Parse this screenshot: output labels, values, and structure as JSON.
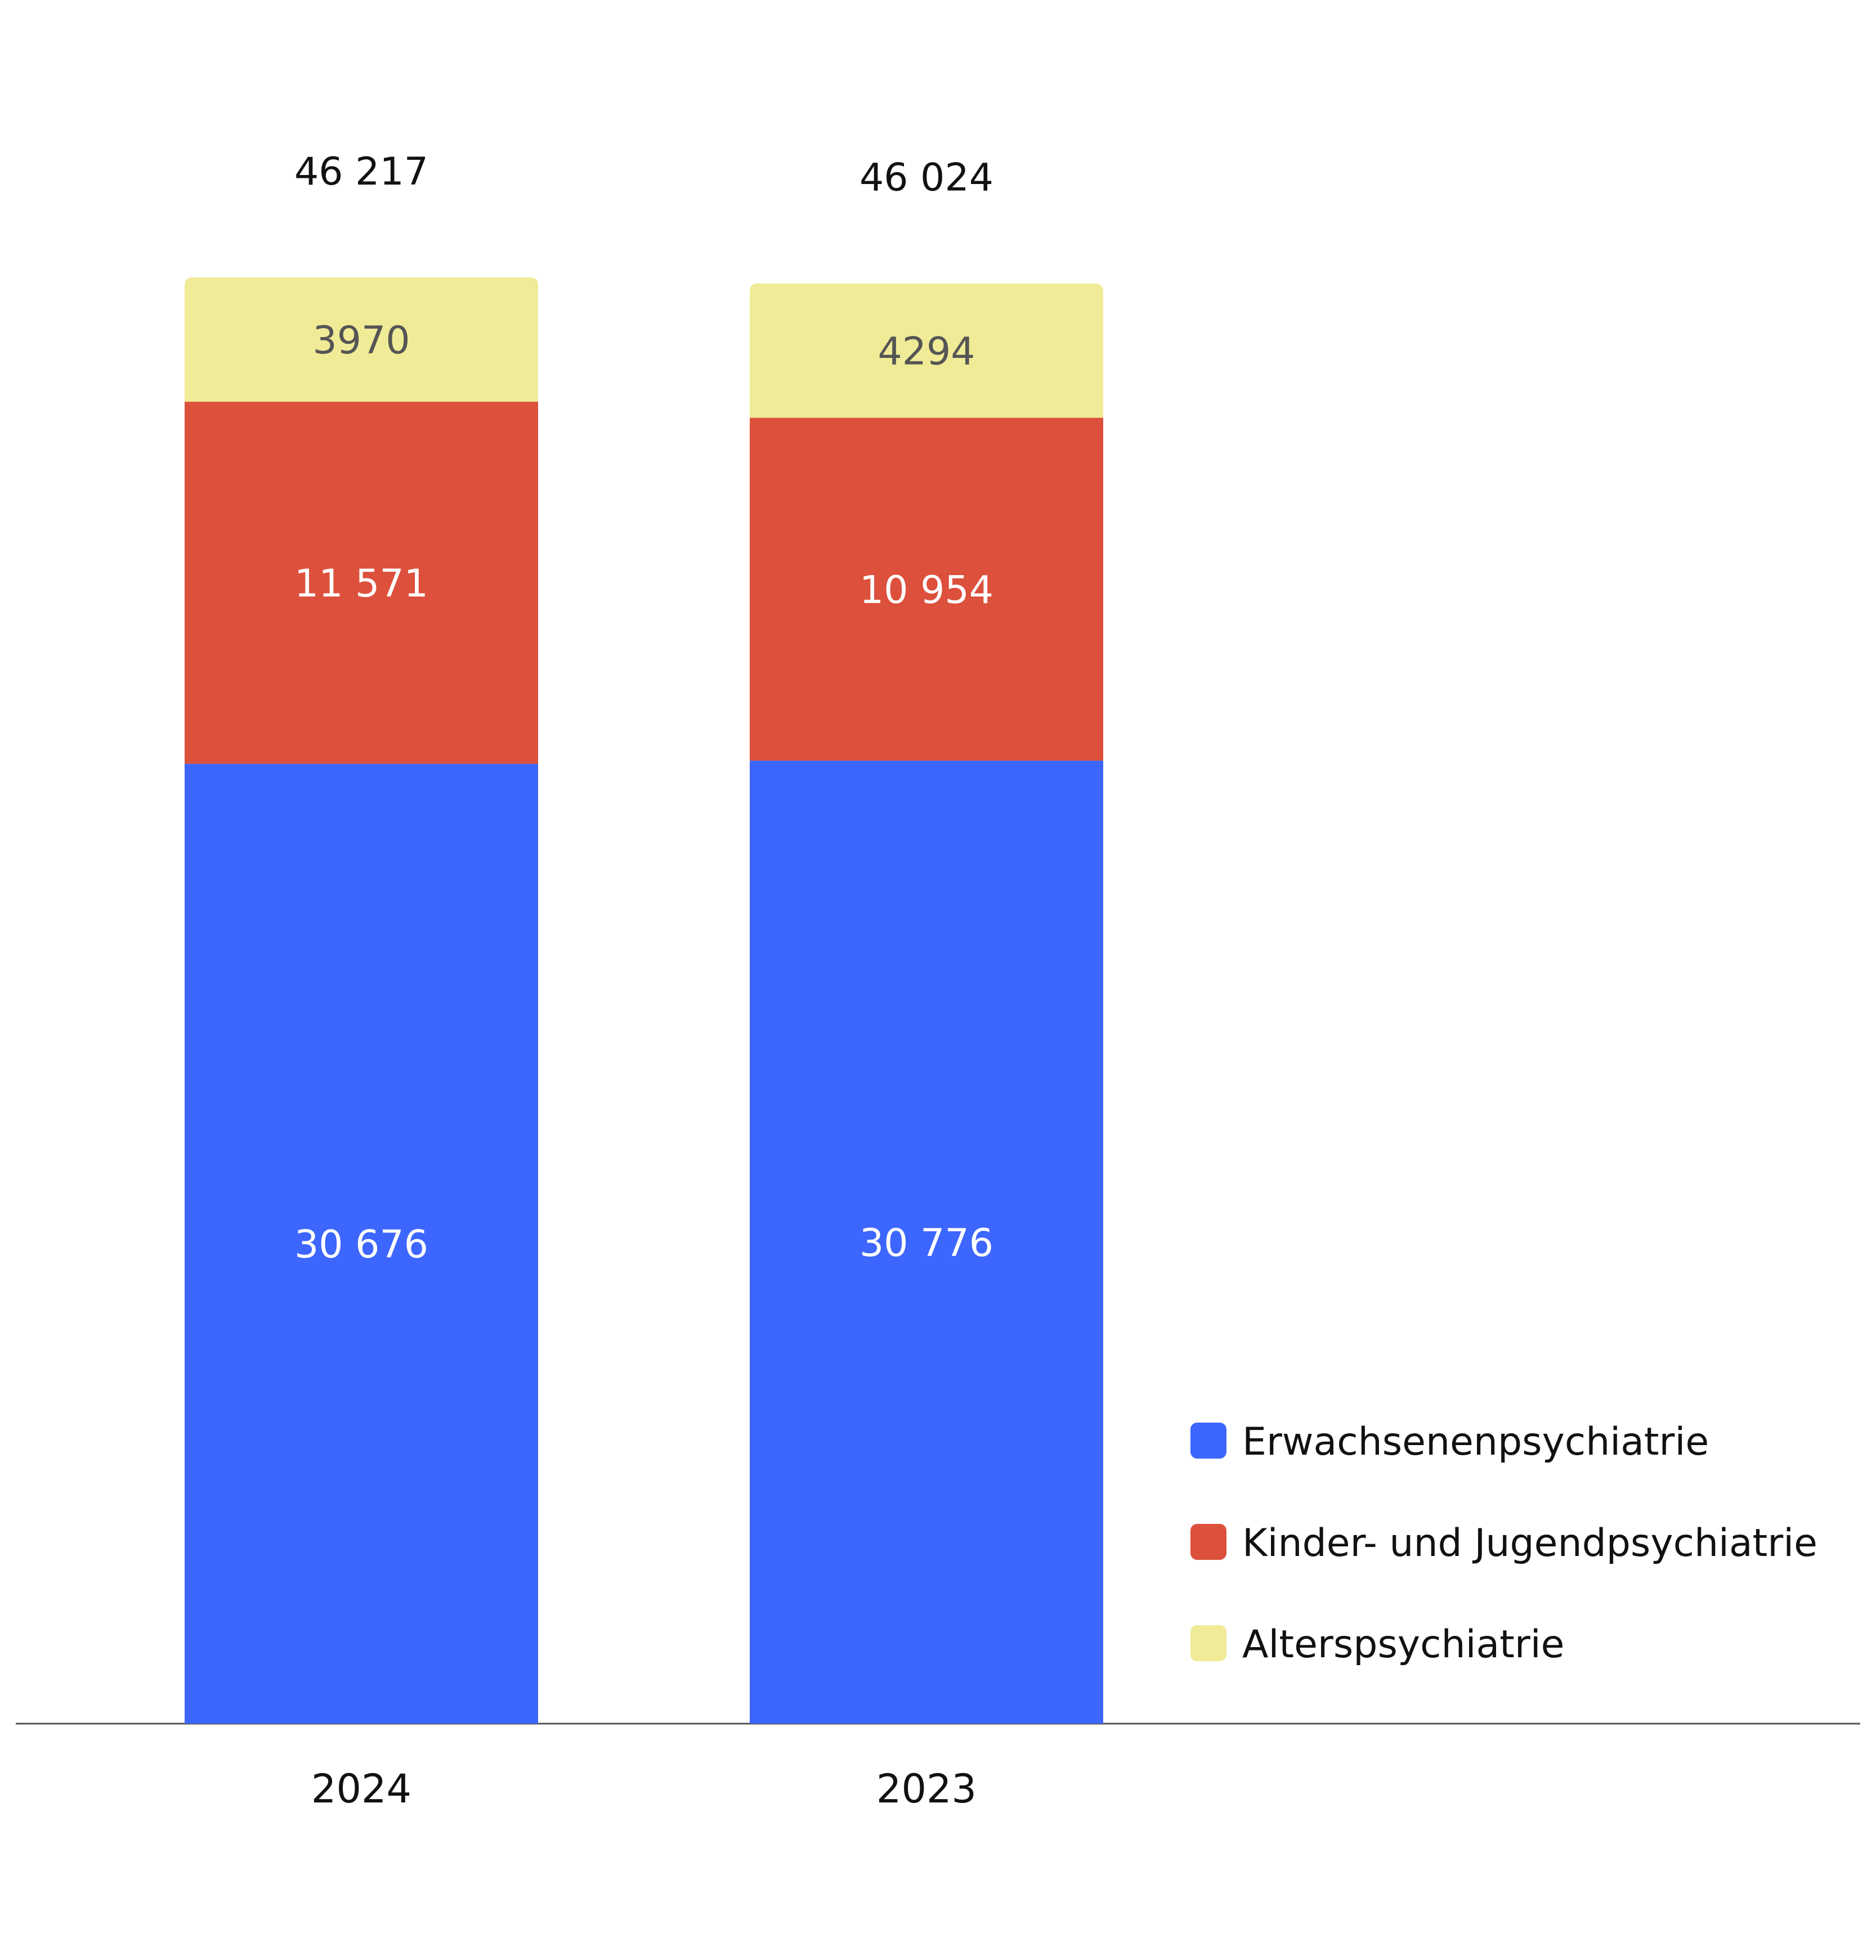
{
  "chart_data": {
    "type": "bar",
    "stacked": true,
    "categories": [
      "2024",
      "2023"
    ],
    "series": [
      {
        "name": "Erwachsenenpsychiatrie",
        "color": "#3d66fe",
        "values": [
          30676,
          30776
        ],
        "labels": [
          "30 676",
          "30 776"
        ],
        "label_color": "#ffffff"
      },
      {
        "name": "Kinder- und Jugendpsychiatrie",
        "color": "#dc503c",
        "values": [
          11571,
          10954
        ],
        "labels": [
          "11 571",
          "10 954"
        ],
        "label_color": "#ffffff"
      },
      {
        "name": "Alterspsychiatrie",
        "color": "#f0eb96",
        "values": [
          3970,
          4294
        ],
        "labels": [
          "3970",
          "4294"
        ],
        "label_color": "#555555"
      }
    ],
    "totals": [
      46217,
      46024
    ],
    "total_labels": [
      "46 217",
      "46 024"
    ],
    "title": "",
    "xlabel": "",
    "ylabel": "",
    "ylim": [
      0,
      46217
    ],
    "grid": false,
    "legend": "bottom-right"
  }
}
